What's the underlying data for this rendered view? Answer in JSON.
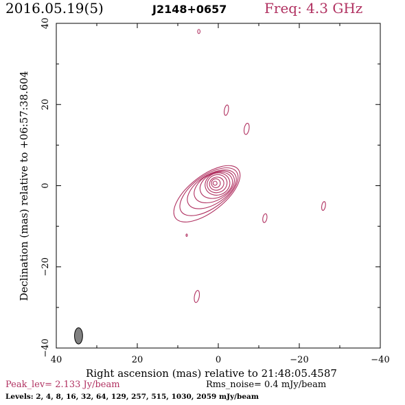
{
  "header": {
    "date": "2016.05.19(5)",
    "source": "J2148+0657",
    "frequency": "Freq: 4.3 GHz"
  },
  "footer": {
    "peak": "Peak_lev=  2.133 Jy/beam",
    "rms": "Rms_noise=  0.4 mJy/beam",
    "levels": "Levels:   2,   4,   8,  16,  32,  64, 129, 257, 515, 1030, 2059 mJy/beam"
  },
  "colors": {
    "contour": "#b03060",
    "beam_fill": "#808080",
    "axis": "#000000"
  },
  "chart_data": {
    "type": "contour",
    "xlabel": "Right ascension (mas) relative to 21:48:05.4587",
    "ylabel": "Declination (mas) relative to +06:57:38.604",
    "xlim": [
      40,
      -40
    ],
    "ylim": [
      -40,
      40
    ],
    "xticks": [
      40,
      20,
      0,
      -20,
      -40
    ],
    "yticks": [
      -40,
      -20,
      0,
      20,
      40
    ],
    "xtick_labels": [
      "40",
      "20",
      "0",
      "−20",
      "−40"
    ],
    "ytick_labels": [
      "−40",
      "−20",
      "0",
      "20",
      "40"
    ],
    "levels_mJy": [
      2,
      4,
      8,
      16,
      32,
      64,
      129,
      257,
      515,
      1030,
      2059
    ],
    "peak_Jy_per_beam": 2.133,
    "rms_mJy_per_beam": 0.4,
    "beam": {
      "ra": 34.5,
      "dec": -37.0,
      "major": 4.0,
      "minor": 2.0,
      "pa_deg": 0
    },
    "core_contours": [
      {
        "ra": 0.8,
        "dec": 0.6,
        "a": 0.5,
        "b": 0.5,
        "pa": 0
      },
      {
        "ra": 0.6,
        "dec": 0.6,
        "a": 1.1,
        "b": 1.1,
        "pa": 15
      },
      {
        "ra": 0.4,
        "dec": 0.5,
        "a": 1.8,
        "b": 1.6,
        "pa": 20
      },
      {
        "ra": 0.3,
        "dec": 0.5,
        "a": 2.5,
        "b": 2.2,
        "pa": 20
      },
      {
        "ra": 0.2,
        "dec": 0.4,
        "a": 3.1,
        "b": 2.7,
        "pa": 20
      },
      {
        "ra": 0.5,
        "dec": 0.1,
        "a": 4.2,
        "b": 3.0,
        "pa": 25
      },
      {
        "ra": 1.0,
        "dec": -0.3,
        "a": 5.4,
        "b": 3.3,
        "pa": 30
      },
      {
        "ra": 1.6,
        "dec": -0.9,
        "a": 6.8,
        "b": 3.6,
        "pa": 33
      },
      {
        "ra": 2.3,
        "dec": -1.5,
        "a": 8.4,
        "b": 4.0,
        "pa": 36
      },
      {
        "ra": 2.8,
        "dec": -2.0,
        "a": 9.8,
        "b": 4.4,
        "pa": 38
      }
    ],
    "isolated_contours": [
      {
        "ra": 4.8,
        "dec": 38.0,
        "a": 0.5,
        "b": 0.3,
        "pa": 90
      },
      {
        "ra": -2.0,
        "dec": 18.6,
        "a": 1.3,
        "b": 0.5,
        "pa": 80
      },
      {
        "ra": -7.0,
        "dec": 14.0,
        "a": 1.4,
        "b": 0.6,
        "pa": 80
      },
      {
        "ra": -11.5,
        "dec": -8.0,
        "a": 1.1,
        "b": 0.5,
        "pa": 80
      },
      {
        "ra": -26.0,
        "dec": -5.0,
        "a": 1.1,
        "b": 0.45,
        "pa": 80
      },
      {
        "ra": 7.8,
        "dec": -12.2,
        "a": 0.3,
        "b": 0.15,
        "pa": 90
      },
      {
        "ra": 5.3,
        "dec": -27.3,
        "a": 1.5,
        "b": 0.6,
        "pa": 80
      }
    ]
  }
}
